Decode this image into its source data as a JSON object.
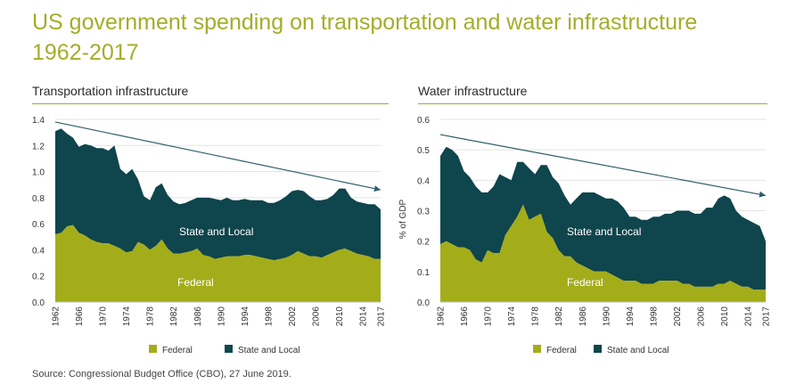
{
  "page": {
    "title_line1": "US government spending on transportation and water infrastructure",
    "title_line2": "1962-2017",
    "source": "Source: Congressional Budget Office (CBO), 27 June 2019."
  },
  "colors": {
    "federal": "#a3ad1a",
    "state_local": "#0f454c",
    "trend": "#2d5e68",
    "accent": "#a3ad2a"
  },
  "chart_data": [
    {
      "type": "area",
      "stacked": true,
      "title": "Transportation infrastructure",
      "ylabel": "",
      "ylim": [
        0,
        1.4
      ],
      "yticks": [
        "0.0",
        "0.2",
        "0.4",
        "0.6",
        "0.8",
        "1.0",
        "1.2",
        "1.4"
      ],
      "xticks": [
        "1962",
        "1966",
        "1970",
        "1974",
        "1978",
        "1982",
        "1986",
        "1990",
        "1994",
        "1998",
        "2002",
        "2006",
        "2010",
        "2014",
        "2017"
      ],
      "x": [
        1962,
        1963,
        1964,
        1965,
        1966,
        1967,
        1968,
        1969,
        1970,
        1971,
        1972,
        1973,
        1974,
        1975,
        1976,
        1977,
        1978,
        1979,
        1980,
        1981,
        1982,
        1983,
        1984,
        1985,
        1986,
        1987,
        1988,
        1989,
        1990,
        1991,
        1992,
        1993,
        1994,
        1995,
        1996,
        1997,
        1998,
        1999,
        2000,
        2001,
        2002,
        2003,
        2004,
        2005,
        2006,
        2007,
        2008,
        2009,
        2010,
        2011,
        2012,
        2013,
        2014,
        2015,
        2016,
        2017
      ],
      "series": [
        {
          "name": "Federal",
          "label": "Federal",
          "values": [
            0.52,
            0.53,
            0.58,
            0.59,
            0.53,
            0.51,
            0.48,
            0.46,
            0.45,
            0.45,
            0.43,
            0.41,
            0.38,
            0.39,
            0.46,
            0.44,
            0.4,
            0.43,
            0.48,
            0.41,
            0.37,
            0.37,
            0.38,
            0.39,
            0.41,
            0.36,
            0.35,
            0.33,
            0.34,
            0.35,
            0.35,
            0.35,
            0.36,
            0.36,
            0.35,
            0.34,
            0.33,
            0.32,
            0.33,
            0.34,
            0.36,
            0.39,
            0.37,
            0.35,
            0.35,
            0.34,
            0.36,
            0.38,
            0.4,
            0.41,
            0.39,
            0.37,
            0.36,
            0.35,
            0.33,
            0.33
          ]
        },
        {
          "name": "State and Local",
          "label": "State and Local",
          "values": [
            0.79,
            0.8,
            0.71,
            0.67,
            0.66,
            0.7,
            0.72,
            0.72,
            0.73,
            0.71,
            0.77,
            0.61,
            0.6,
            0.63,
            0.48,
            0.37,
            0.38,
            0.45,
            0.43,
            0.41,
            0.4,
            0.38,
            0.38,
            0.39,
            0.39,
            0.44,
            0.45,
            0.46,
            0.44,
            0.45,
            0.43,
            0.43,
            0.43,
            0.42,
            0.43,
            0.44,
            0.43,
            0.44,
            0.45,
            0.47,
            0.49,
            0.47,
            0.48,
            0.46,
            0.43,
            0.44,
            0.43,
            0.44,
            0.47,
            0.46,
            0.41,
            0.4,
            0.4,
            0.4,
            0.42,
            0.38
          ]
        }
      ],
      "trend": {
        "from": [
          1962,
          1.38
        ],
        "to": [
          2017,
          0.86
        ]
      },
      "legend_position": "bottom"
    },
    {
      "type": "area",
      "stacked": true,
      "title": "Water infrastructure",
      "ylabel": "% of GDP",
      "ylim": [
        0,
        0.6
      ],
      "yticks": [
        "0.0",
        "0.1",
        "0.2",
        "0.3",
        "0.4",
        "0.5",
        "0.6"
      ],
      "xticks": [
        "1962",
        "1966",
        "1970",
        "1974",
        "1978",
        "1982",
        "1986",
        "1990",
        "1994",
        "1998",
        "2002",
        "2006",
        "2010",
        "2014",
        "2017"
      ],
      "x": [
        1962,
        1963,
        1964,
        1965,
        1966,
        1967,
        1968,
        1969,
        1970,
        1971,
        1972,
        1973,
        1974,
        1975,
        1976,
        1977,
        1978,
        1979,
        1980,
        1981,
        1982,
        1983,
        1984,
        1985,
        1986,
        1987,
        1988,
        1989,
        1990,
        1991,
        1992,
        1993,
        1994,
        1995,
        1996,
        1997,
        1998,
        1999,
        2000,
        2001,
        2002,
        2003,
        2004,
        2005,
        2006,
        2007,
        2008,
        2009,
        2010,
        2011,
        2012,
        2013,
        2014,
        2015,
        2016,
        2017
      ],
      "series": [
        {
          "name": "Federal",
          "label": "Federal",
          "values": [
            0.19,
            0.2,
            0.19,
            0.18,
            0.18,
            0.17,
            0.14,
            0.13,
            0.17,
            0.16,
            0.16,
            0.22,
            0.25,
            0.28,
            0.32,
            0.27,
            0.28,
            0.29,
            0.23,
            0.21,
            0.17,
            0.15,
            0.15,
            0.13,
            0.12,
            0.11,
            0.1,
            0.1,
            0.1,
            0.09,
            0.08,
            0.07,
            0.07,
            0.07,
            0.06,
            0.06,
            0.06,
            0.07,
            0.07,
            0.07,
            0.07,
            0.06,
            0.06,
            0.05,
            0.05,
            0.05,
            0.05,
            0.06,
            0.06,
            0.07,
            0.06,
            0.05,
            0.05,
            0.04,
            0.04,
            0.04
          ]
        },
        {
          "name": "State and Local",
          "label": "State and Local",
          "values": [
            0.29,
            0.31,
            0.31,
            0.3,
            0.25,
            0.24,
            0.24,
            0.23,
            0.19,
            0.22,
            0.26,
            0.19,
            0.15,
            0.18,
            0.14,
            0.17,
            0.14,
            0.16,
            0.22,
            0.2,
            0.22,
            0.2,
            0.17,
            0.21,
            0.24,
            0.25,
            0.26,
            0.25,
            0.24,
            0.25,
            0.25,
            0.24,
            0.21,
            0.21,
            0.21,
            0.21,
            0.22,
            0.21,
            0.22,
            0.22,
            0.23,
            0.24,
            0.24,
            0.24,
            0.24,
            0.26,
            0.26,
            0.28,
            0.29,
            0.27,
            0.24,
            0.23,
            0.22,
            0.22,
            0.21,
            0.16
          ]
        }
      ],
      "trend": {
        "from": [
          1962,
          0.55
        ],
        "to": [
          2017,
          0.35
        ]
      },
      "legend_position": "bottom"
    }
  ]
}
